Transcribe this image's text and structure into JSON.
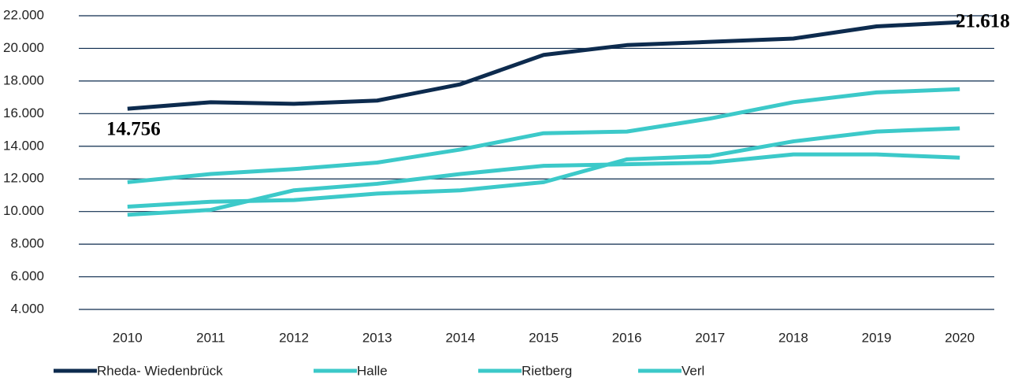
{
  "chart_data": {
    "type": "line",
    "categories": [
      "2010",
      "2011",
      "2012",
      "2013",
      "2014",
      "2015",
      "2016",
      "2017",
      "2018",
      "2019",
      "2020"
    ],
    "series": [
      {
        "name": "Rheda- Wiedenbrück",
        "color": "#0d2b4e",
        "values": [
          16300,
          16700,
          16600,
          16800,
          17800,
          19600,
          20200,
          20400,
          20600,
          21350,
          21600
        ]
      },
      {
        "name": "Halle",
        "color": "#3cc9c9",
        "values": [
          11800,
          12300,
          12600,
          13000,
          13800,
          14800,
          14900,
          15700,
          16700,
          17300,
          17500
        ]
      },
      {
        "name": "Rietberg",
        "color": "#3cc9c9",
        "values": [
          10300,
          10600,
          10700,
          11100,
          11300,
          11800,
          13200,
          13400,
          14300,
          14900,
          15100
        ]
      },
      {
        "name": "Verl",
        "color": "#3cc9c9",
        "values": [
          9800,
          10100,
          11300,
          11700,
          12300,
          12800,
          12900,
          13000,
          13500,
          13500,
          13300
        ]
      }
    ],
    "annotations": [
      "14.756",
      "21.618"
    ],
    "ylim": [
      4000,
      22000
    ],
    "yticks": [
      {
        "value": 4000,
        "label": "4.000"
      },
      {
        "value": 6000,
        "label": "6.000"
      },
      {
        "value": 8000,
        "label": "8.000"
      },
      {
        "value": 10000,
        "label": "10.000"
      },
      {
        "value": 12000,
        "label": "12.000"
      },
      {
        "value": 14000,
        "label": "14.000"
      },
      {
        "value": 16000,
        "label": "16.000"
      },
      {
        "value": 18000,
        "label": "18.000"
      },
      {
        "value": 20000,
        "label": "20.000"
      },
      {
        "value": 22000,
        "label": "22.000"
      }
    ],
    "grid": true,
    "legend": "bottom"
  }
}
